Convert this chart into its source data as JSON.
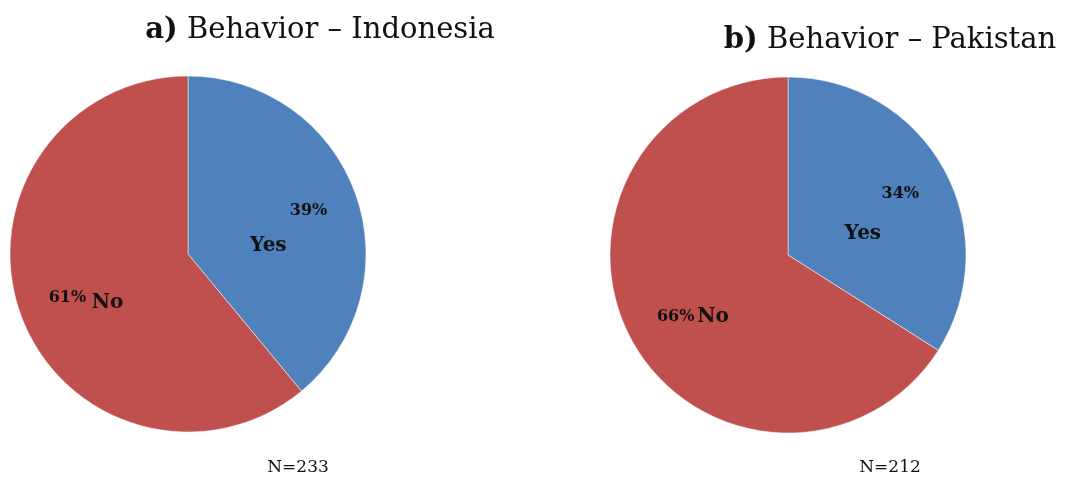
{
  "chart_data": [
    {
      "type": "pie",
      "title": "a) Behavior – Indonesia",
      "categories": [
        "Yes",
        "No"
      ],
      "values": [
        39,
        61
      ],
      "colors": [
        "#4f81bd",
        "#c0504d"
      ],
      "value_labels": [
        "39%",
        "61%"
      ],
      "annotations": [
        "N=233"
      ]
    },
    {
      "type": "pie",
      "title": "b) Behavior – Pakistan",
      "categories": [
        "Yes",
        "No"
      ],
      "values": [
        34,
        66
      ],
      "colors": [
        "#4f81bd",
        "#c0504d"
      ],
      "value_labels": [
        "34%",
        "66%"
      ],
      "annotations": [
        "N=212"
      ]
    }
  ]
}
